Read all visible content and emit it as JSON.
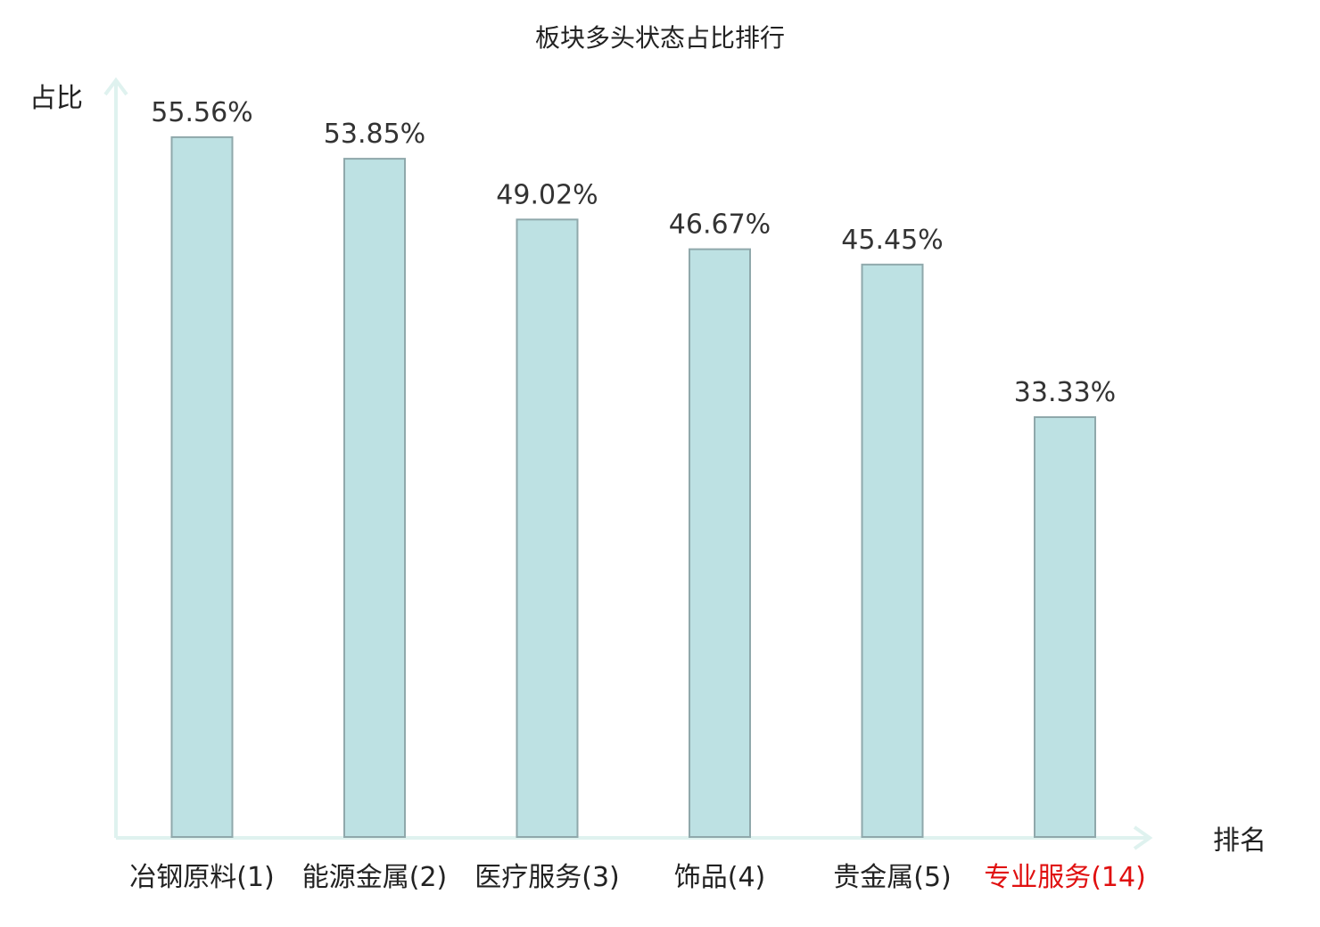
{
  "chart_data": {
    "type": "bar",
    "title": "板块多头状态占比排行",
    "ylabel": "占比",
    "xlabel": "排名",
    "categories": [
      "冶钢原料(1)",
      "能源金属(2)",
      "医疗服务(3)",
      "饰品(4)",
      "贵金属(5)",
      "专业服务(14)"
    ],
    "values": [
      55.56,
      53.85,
      49.02,
      46.67,
      45.45,
      33.33
    ],
    "value_labels": [
      "55.56%",
      "53.85%",
      "49.02%",
      "46.67%",
      "45.45%",
      "33.33%"
    ],
    "highlight": [
      false,
      false,
      false,
      false,
      false,
      true
    ],
    "ylim": [
      0,
      58
    ],
    "grid": false,
    "legend": "none"
  },
  "colors": {
    "bar_fill": "#bde1e3",
    "bar_stroke": "#8fa8ab",
    "axis": "#dff2ef",
    "label": "#222222",
    "highlight_label": "#e01010"
  }
}
